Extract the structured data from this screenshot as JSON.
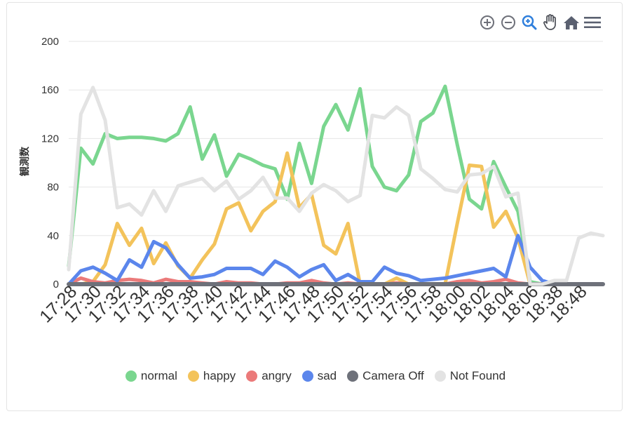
{
  "toolbar": {
    "items": [
      {
        "name": "zoom-in-icon"
      },
      {
        "name": "zoom-out-icon"
      },
      {
        "name": "selection-zoom-icon"
      },
      {
        "name": "pan-hand-icon"
      },
      {
        "name": "home-reset-icon"
      },
      {
        "name": "menu-icon"
      }
    ]
  },
  "chart_data": {
    "type": "line",
    "ylabel": "観測数",
    "ylim": [
      0,
      200
    ],
    "yticks": [
      0,
      40,
      80,
      120,
      160,
      200
    ],
    "grid": true,
    "legend_position": "bottom",
    "xtick_labels": [
      "17:28",
      "17:30",
      "17:32",
      "17:34",
      "17:36",
      "17:38",
      "17:40",
      "17:42",
      "17:44",
      "17:46",
      "17:48",
      "17:50",
      "17:52",
      "17:54",
      "17:56",
      "17:58",
      "18:00",
      "18:02",
      "18:04",
      "18:06",
      "18:38",
      "18:48"
    ],
    "series": [
      {
        "name": "normal",
        "color": "#7ad68f",
        "values": [
          15,
          112,
          99,
          124,
          120,
          121,
          121,
          120,
          118,
          124,
          146,
          103,
          123,
          89,
          107,
          103,
          98,
          95,
          70,
          116,
          83,
          130,
          148,
          127,
          161,
          97,
          80,
          77,
          90,
          134,
          141,
          163,
          115,
          70,
          62,
          101,
          80,
          60,
          2,
          0,
          0,
          0,
          0,
          0,
          0
        ]
      },
      {
        "name": "happy",
        "color": "#f3c35b",
        "values": [
          0,
          0,
          2,
          16,
          50,
          32,
          46,
          17,
          34,
          15,
          5,
          20,
          33,
          62,
          67,
          44,
          60,
          68,
          108,
          63,
          74,
          32,
          25,
          50,
          0,
          0,
          0,
          5,
          0,
          0,
          0,
          0,
          50,
          98,
          97,
          47,
          60,
          38,
          0,
          0,
          0,
          0,
          0,
          0,
          0
        ]
      },
      {
        "name": "angry",
        "color": "#eb7a7a",
        "values": [
          0,
          5,
          2,
          1,
          3,
          4,
          3,
          1,
          4,
          2,
          2,
          1,
          0,
          2,
          1,
          1,
          0,
          0,
          1,
          1,
          3,
          1,
          0,
          1,
          0,
          0,
          0,
          1,
          0,
          0,
          0,
          0,
          2,
          3,
          1,
          2,
          4,
          1,
          0,
          0,
          0,
          0,
          0,
          0,
          0
        ]
      },
      {
        "name": "sad",
        "color": "#5b86ec",
        "values": [
          0,
          11,
          14,
          9,
          3,
          20,
          14,
          35,
          30,
          16,
          5,
          6,
          8,
          13,
          13,
          13,
          8,
          19,
          14,
          6,
          12,
          16,
          3,
          8,
          2,
          2,
          14,
          9,
          7,
          3,
          4,
          5,
          7,
          9,
          11,
          13,
          6,
          40,
          14,
          3,
          0,
          0,
          0,
          0,
          0
        ]
      },
      {
        "name": "Camera Off",
        "color": "#6e717a",
        "values": [
          0,
          0,
          0,
          0,
          0,
          0,
          0,
          0,
          0,
          0,
          0,
          0,
          0,
          0,
          0,
          0,
          0,
          0,
          0,
          0,
          0,
          0,
          0,
          0,
          0,
          0,
          0,
          0,
          0,
          0,
          0,
          0,
          0,
          0,
          0,
          0,
          0,
          0,
          0,
          0,
          0,
          0,
          0,
          0,
          0
        ]
      },
      {
        "name": "Not Found",
        "color": "#e3e3e3",
        "values": [
          12,
          140,
          162,
          135,
          63,
          66,
          57,
          77,
          60,
          81,
          84,
          87,
          77,
          85,
          70,
          77,
          88,
          71,
          71,
          60,
          75,
          82,
          77,
          68,
          73,
          139,
          137,
          146,
          139,
          95,
          87,
          78,
          76,
          90,
          91,
          97,
          72,
          75,
          0,
          0,
          3,
          3,
          38,
          42,
          40
        ]
      }
    ]
  }
}
